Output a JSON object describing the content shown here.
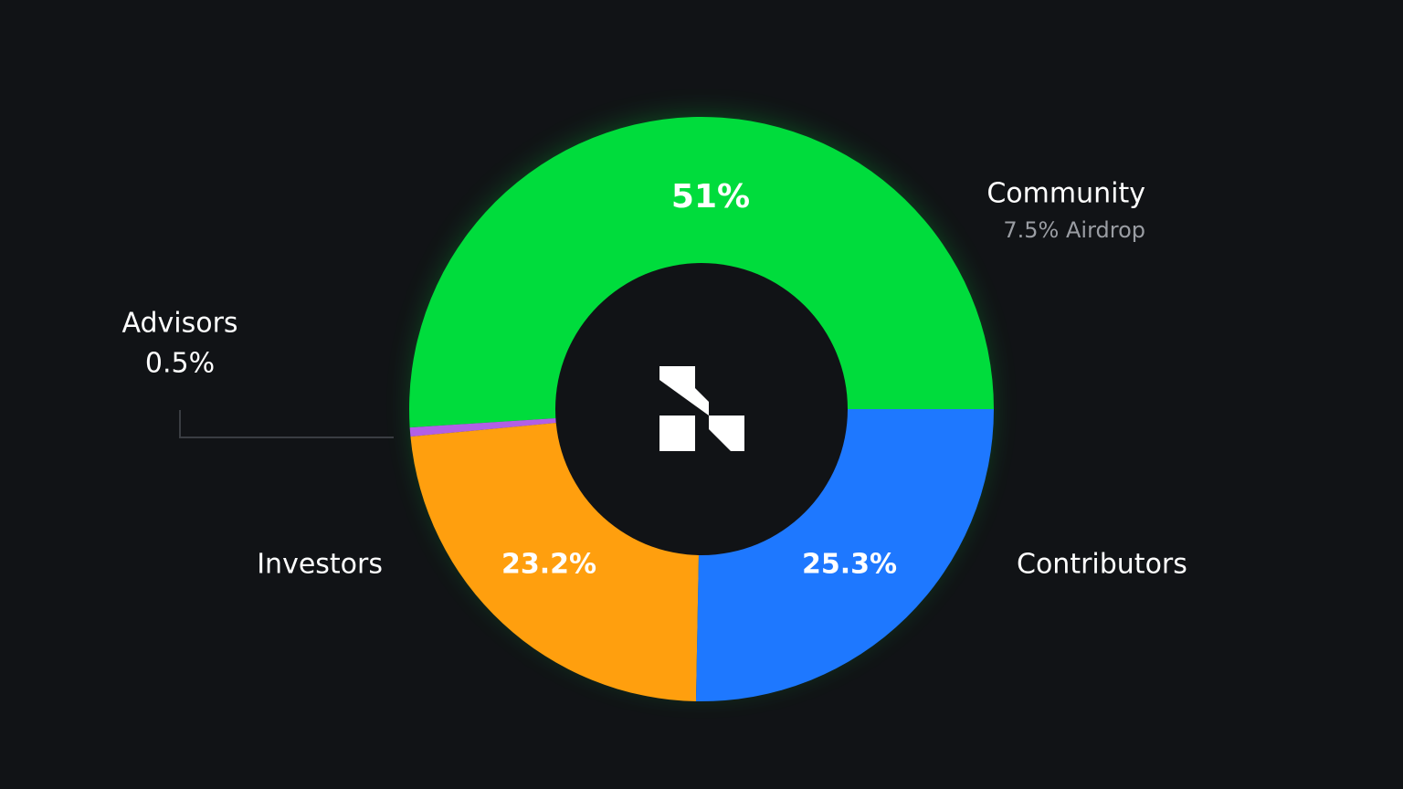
{
  "chart_data": {
    "type": "pie",
    "variant": "donut",
    "start_angle_deg": 0,
    "direction": "counterclockwise",
    "slices": [
      {
        "name": "Community",
        "value": 51,
        "value_label": "51%",
        "note": "7.5% Airdrop",
        "color": "#00DC3C"
      },
      {
        "name": "Advisors",
        "value": 0.5,
        "value_label": "0.5%",
        "color": "#B25FE6"
      },
      {
        "name": "Investors",
        "value": 23.2,
        "value_label": "23.2%",
        "color": "#FF9F0E"
      },
      {
        "name": "Contributors",
        "value": 25.3,
        "value_label": "25.3%",
        "color": "#1E78FF"
      }
    ],
    "center_logo": "brand-logo-icon",
    "background_color": "#111316",
    "label_color": "#FFFFFF",
    "note_color": "#9A9DA3",
    "glow_color": "#00DC3C"
  }
}
